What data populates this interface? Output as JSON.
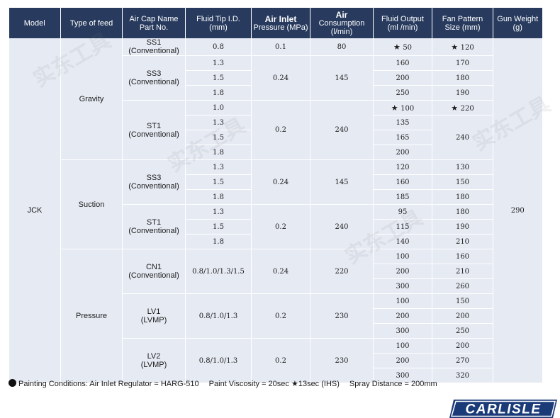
{
  "headers": {
    "model": "Model",
    "feed": "Type of feed",
    "cap": "Air Cap Name Part No.",
    "tip": "Fluid Tip I.D. (mm)",
    "pressure_bold": "Air Inlet",
    "pressure": "Pressure (MPa)",
    "consumption_bold": "Air",
    "consumption": "Consumption (l/min)",
    "output": "Fluid Output (ml /min)",
    "fan": "Fan Pattern Size (mm)",
    "weight": "Gun Weight (g)"
  },
  "model": "JCK",
  "gun_weight": "290",
  "feeds": [
    {
      "name": "Gravity",
      "caps": [
        {
          "name": "SS1 (Conventional)",
          "pressure": "0.1",
          "consumption": "80",
          "rows": [
            {
              "tip": "0.8",
              "output": "50",
              "output_star": true,
              "fan": "120",
              "fan_star": true
            }
          ]
        },
        {
          "name": "SS3 (Conventional)",
          "pressure": "0.24",
          "consumption": "145",
          "rows": [
            {
              "tip": "1.3",
              "output": "160",
              "fan": "170"
            },
            {
              "tip": "1.5",
              "output": "200",
              "fan": "180"
            },
            {
              "tip": "1.8",
              "output": "250",
              "fan": "190"
            }
          ]
        },
        {
          "name": "ST1 (Conventional)",
          "pressure": "0.2",
          "consumption": "240",
          "rows": [
            {
              "tip": "1.0",
              "output": "100",
              "output_star": true,
              "fan": "220",
              "fan_star": true
            },
            {
              "tip": "1.3",
              "output": "135",
              "fan": "240",
              "fan_span": 3
            },
            {
              "tip": "1.5",
              "output": "165",
              "fan": null
            },
            {
              "tip": "1.8",
              "output": "200",
              "fan": null
            }
          ]
        }
      ]
    },
    {
      "name": "Suction",
      "caps": [
        {
          "name": "SS3 (Conventional)",
          "pressure": "0.24",
          "consumption": "145",
          "rows": [
            {
              "tip": "1.3",
              "output": "120",
              "fan": "130"
            },
            {
              "tip": "1.5",
              "output": "160",
              "fan": "150"
            },
            {
              "tip": "1.8",
              "output": "185",
              "fan": "180"
            }
          ]
        },
        {
          "name": "ST1 (Conventional)",
          "pressure": "0.2",
          "consumption": "240",
          "rows": [
            {
              "tip": "1.3",
              "output": "95",
              "fan": "180"
            },
            {
              "tip": "1.5",
              "output": "115",
              "fan": "190"
            },
            {
              "tip": "1.8",
              "output": "140",
              "fan": "210"
            }
          ]
        }
      ]
    },
    {
      "name": "Pressure",
      "caps": [
        {
          "name": "CN1 (Conventional)",
          "tip_all": "0.8/1.0/1.3/1.5",
          "pressure": "0.24",
          "consumption": "220",
          "rows": [
            {
              "output": "100",
              "fan": "160"
            },
            {
              "output": "200",
              "fan": "210"
            },
            {
              "output": "300",
              "fan": "260"
            }
          ]
        },
        {
          "name": "LV1 (LVMP)",
          "tip_all": "0.8/1.0/1.3",
          "pressure": "0.2",
          "consumption": "230",
          "rows": [
            {
              "output": "100",
              "fan": "150"
            },
            {
              "output": "200",
              "fan": "200"
            },
            {
              "output": "300",
              "fan": "250"
            }
          ]
        },
        {
          "name": "LV2 (LVMP)",
          "tip_all": "0.8/1.0/1.3",
          "pressure": "0.2",
          "consumption": "230",
          "rows": [
            {
              "output": "100",
              "fan": "200"
            },
            {
              "output": "200",
              "fan": "270"
            },
            {
              "output": "300",
              "fan": "320"
            }
          ]
        }
      ]
    }
  ],
  "footer": {
    "conditions": "Painting Conditions: Air Inlet Regulator = HARG-510",
    "viscosity": "Paint Viscosity = 20sec",
    "star_note": "13sec (IHS)",
    "distance": "Spray Distance = 200mm"
  },
  "brand": "CARLISLE",
  "watermark": "实东工具",
  "colors": {
    "header": "#283b5e",
    "cell": "#e6eaf3",
    "logo": "#1b3a78"
  }
}
